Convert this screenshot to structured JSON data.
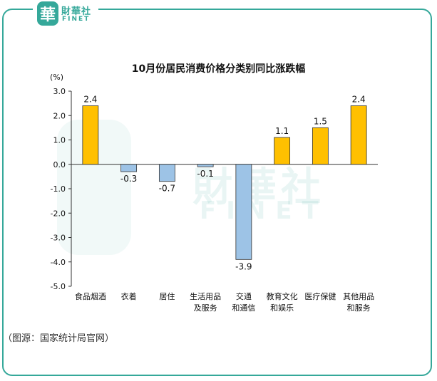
{
  "logo": {
    "cn": "財華社",
    "en": "FINET",
    "seal": "華"
  },
  "source_note": "（图源：国家统计局官网）",
  "colors": {
    "positive": "#FFC000",
    "negative": "#9DC3E6",
    "frame": "#35A89A"
  },
  "chart_data": {
    "type": "bar",
    "title": "10月份居民消费价格分类别同比涨跌幅",
    "ylabel": "(%)",
    "ylim": [
      -5.0,
      3.0
    ],
    "yticks": [
      "3.0",
      "2.0",
      "1.0",
      "0.0",
      "-1.0",
      "-2.0",
      "-3.0",
      "-4.0",
      "-5.0"
    ],
    "categories": [
      [
        "食品烟酒"
      ],
      [
        "衣着"
      ],
      [
        "居住"
      ],
      [
        "生活用品",
        "及服务"
      ],
      [
        "交通",
        "和通信"
      ],
      [
        "教育文化",
        "和娱乐"
      ],
      [
        "医疗保健"
      ],
      [
        "其他用品",
        "和服务"
      ]
    ],
    "values": [
      2.4,
      -0.3,
      -0.7,
      -0.1,
      -3.9,
      1.1,
      1.5,
      2.4
    ],
    "labels": [
      "2.4",
      "-0.3",
      "-0.7",
      "-0.1",
      "-3.9",
      "1.1",
      "1.5",
      "2.4"
    ]
  }
}
